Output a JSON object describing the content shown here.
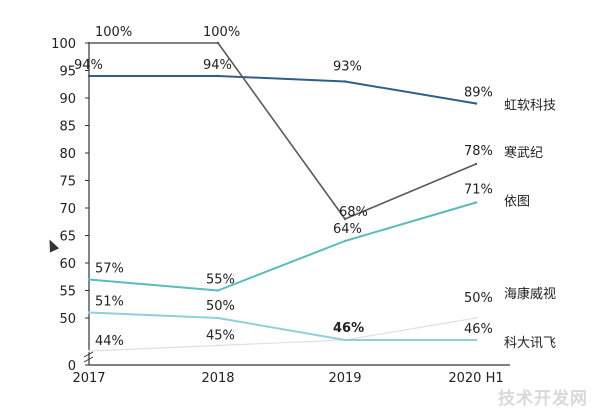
{
  "chart_data": {
    "type": "line",
    "title": "",
    "xlabel": "",
    "ylabel": "",
    "x": [
      "2017",
      "2018",
      "2019",
      "2020 H1"
    ],
    "ylim": [
      0,
      100
    ],
    "y_axis_break": true,
    "yticks": [
      "0",
      "50",
      "55",
      "60",
      "65",
      "70",
      "75",
      "80",
      "85",
      "90",
      "95",
      "100"
    ],
    "grid": false,
    "legend": "labels at line ends (right)",
    "series": [
      {
        "name": "虹软科技",
        "color": "#2e5f8a",
        "values": [
          94,
          94,
          93,
          89
        ],
        "labels": [
          "94%",
          "94%",
          "93%",
          "89%"
        ]
      },
      {
        "name": "寒武纪",
        "color": "#5a5a5a",
        "values": [
          100,
          100,
          68,
          78
        ],
        "labels": [
          "100%",
          "100%",
          "68%",
          "78%"
        ]
      },
      {
        "name": "依图",
        "color": "#58bcbc",
        "values": [
          57,
          55,
          64,
          71
        ],
        "labels": [
          "57%",
          "55%",
          "64%",
          "71%"
        ]
      },
      {
        "name": "海康威视",
        "color": "#e0e0e0",
        "values": [
          44,
          45,
          46,
          50
        ],
        "labels": [
          "44%",
          "45%",
          "",
          "50%"
        ]
      },
      {
        "name": "科大讯飞",
        "color": "#8fd0dc",
        "values": [
          51,
          50,
          46,
          46
        ],
        "labels": [
          "51%",
          "50%",
          "46%",
          "46%"
        ]
      }
    ]
  },
  "watermark": "技术开发网"
}
